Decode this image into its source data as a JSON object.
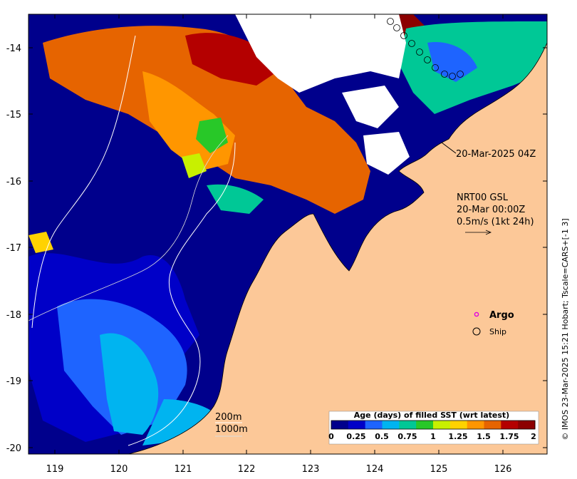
{
  "map": {
    "lon_ticks": [
      "119",
      "120",
      "121",
      "122",
      "123",
      "124",
      "125",
      "126"
    ],
    "lat_ticks": [
      "-14",
      "-15",
      "-16",
      "-17",
      "-18",
      "-19",
      "-20"
    ],
    "lon_range": [
      118.6,
      126.7
    ],
    "lat_range": [
      -20.1,
      -13.5
    ]
  },
  "annotations": {
    "pass_time": "20-Mar-2025 04Z",
    "current_product": "NRT00 GSL",
    "current_time": "20-Mar 00:00Z",
    "current_scale": "0.5m/s (1kt 24h)"
  },
  "legend": {
    "argo_label": "Argo",
    "ship_label": "Ship",
    "argo_color": "#e000e0"
  },
  "contours": {
    "label_200": "200m",
    "label_1000": "1000m"
  },
  "colorbar": {
    "title": "Age (days) of filled SST (wrt latest)",
    "ticks": [
      "0",
      "0.25",
      "0.5",
      "0.75",
      "1",
      "1.25",
      "1.5",
      "1.75",
      "2"
    ],
    "colors": [
      "#00008c",
      "#0000c8",
      "#1e64ff",
      "#00b4f0",
      "#00c896",
      "#28c828",
      "#c8f000",
      "#ffd200",
      "#ff9600",
      "#e66400",
      "#b40000",
      "#8c0000"
    ]
  },
  "credit": "© IMOS 23-Mar-2025 15:21 Hobart; Tscale=CARS+[-1 3]"
}
